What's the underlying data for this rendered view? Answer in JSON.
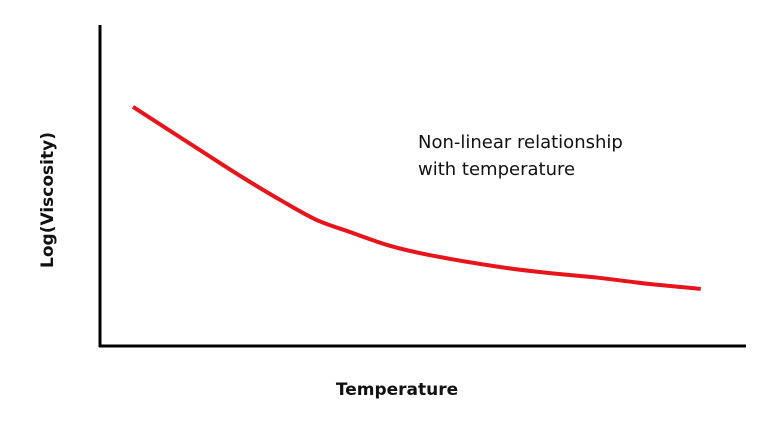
{
  "chart_data": {
    "type": "line",
    "xlabel": "Temperature",
    "ylabel": "Log(Viscosity)",
    "annotation": [
      "Non-linear relationship",
      "with temperature"
    ],
    "x": [
      5.1,
      15.5,
      21.7,
      27.9,
      33.4,
      38.7,
      44.9,
      51.1,
      61.9,
      69.7,
      77.4,
      85.1,
      93
    ],
    "series": [
      {
        "color": "#e8141b",
        "values": [
          74.5,
          61,
          53,
          45.5,
          39.4,
          35.5,
          31.2,
          28.3,
          24.6,
          22.7,
          21.2,
          19.3,
          17.8
        ]
      }
    ],
    "xlim": [
      0,
      100
    ],
    "ylim": [
      0,
      100
    ]
  }
}
